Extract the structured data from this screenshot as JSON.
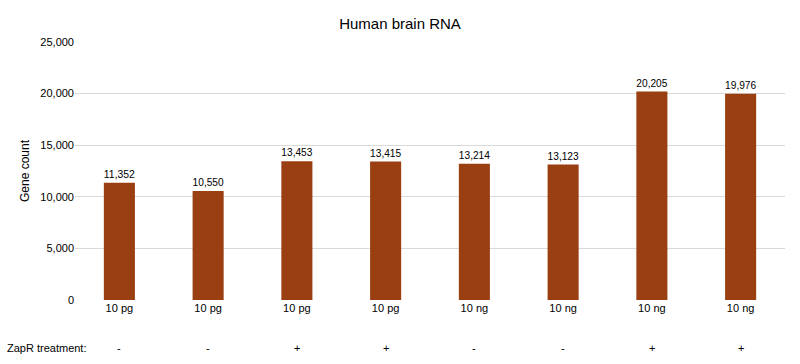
{
  "chart_data": {
    "type": "bar",
    "title": "Human brain RNA",
    "y_label": "Gene count",
    "categories": [
      "10 pg",
      "10 pg",
      "10 pg",
      "10 pg",
      "10 ng",
      "10 ng",
      "10 ng",
      "10 ng"
    ],
    "treatment_label": "ZapR treatment:",
    "treatment": [
      "-",
      "-",
      "+",
      "+",
      "-",
      "-",
      "+",
      "+"
    ],
    "values": [
      11352,
      10550,
      13453,
      13415,
      13214,
      13123,
      20205,
      19976
    ],
    "value_labels": [
      "11,352",
      "10,550",
      "13,453",
      "13,415",
      "13,214",
      "13,123",
      "20,205",
      "19,976"
    ],
    "color": "#9a3f12",
    "ylim": [
      0,
      25000
    ],
    "yticks": [
      0,
      {
        "value": 5000,
        "label": "5,000"
      },
      {
        "value": 10000,
        "label": "10,000"
      },
      {
        "value": 15000,
        "label": "15,000"
      },
      {
        "value": 20000,
        "label": "20,000"
      },
      {
        "value": 25000,
        "label": "25,000"
      }
    ],
    "grid": true,
    "data_labels": true
  }
}
